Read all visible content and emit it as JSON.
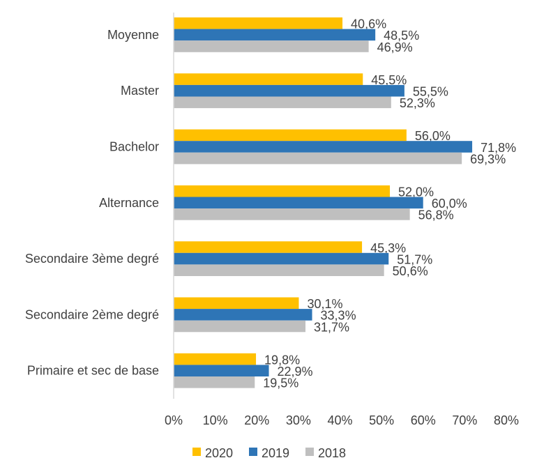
{
  "chart_data": {
    "type": "bar",
    "orientation": "horizontal",
    "categories": [
      "Moyenne",
      "Master",
      "Bachelor",
      "Alternance",
      "Secondaire 3ème degré",
      "Secondaire 2ème degré",
      "Primaire et sec de base"
    ],
    "series": [
      {
        "name": "2020",
        "color": "#FFC000",
        "values": [
          40.6,
          45.5,
          56.0,
          52.0,
          45.3,
          30.1,
          19.8
        ],
        "labels": [
          "40,6%",
          "45,5%",
          "56,0%",
          "52,0%",
          "45,3%",
          "30,1%",
          "19,8%"
        ]
      },
      {
        "name": "2019",
        "color": "#2E75B6",
        "values": [
          48.5,
          55.5,
          71.8,
          60.0,
          51.7,
          33.3,
          22.9
        ],
        "labels": [
          "48,5%",
          "55,5%",
          "71,8%",
          "60,0%",
          "51,7%",
          "33,3%",
          "22,9%"
        ]
      },
      {
        "name": "2018",
        "color": "#BFBFBF",
        "values": [
          46.9,
          52.3,
          69.3,
          56.8,
          50.6,
          31.7,
          19.5
        ],
        "labels": [
          "46,9%",
          "52,3%",
          "69,3%",
          "56,8%",
          "50,6%",
          "31,7%",
          "19,5%"
        ]
      }
    ],
    "xlim": [
      0,
      80
    ],
    "xticks": [
      "0%",
      "10%",
      "20%",
      "30%",
      "40%",
      "50%",
      "60%",
      "70%",
      "80%"
    ],
    "title": "",
    "xlabel": "",
    "ylabel": "",
    "grid": false,
    "legend": "bottom"
  }
}
